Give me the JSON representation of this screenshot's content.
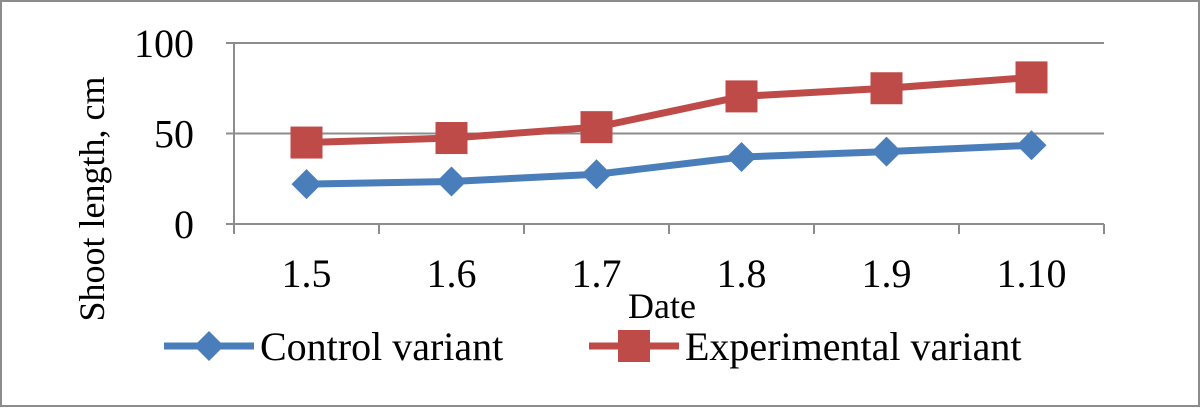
{
  "chart_data": {
    "type": "line",
    "title": "",
    "xlabel": "Date",
    "ylabel": "Shoot length, cm",
    "categories": [
      "1.5",
      "1.6",
      "1.7",
      "1.8",
      "1.9",
      "1.10"
    ],
    "ylim": [
      0,
      100
    ],
    "yticks": [
      "0",
      "50",
      "100"
    ],
    "grid": "horizontal",
    "legend_position": "bottom",
    "series": [
      {
        "name": "Control variant",
        "values": [
          22,
          23.5,
          27.5,
          37,
          40,
          43.5
        ],
        "color": "#4a7ebb",
        "marker": "diamond"
      },
      {
        "name": "Experimental variant",
        "values": [
          45,
          47.5,
          53.5,
          70.5,
          75,
          81
        ],
        "color": "#be4b48",
        "marker": "square"
      }
    ]
  }
}
